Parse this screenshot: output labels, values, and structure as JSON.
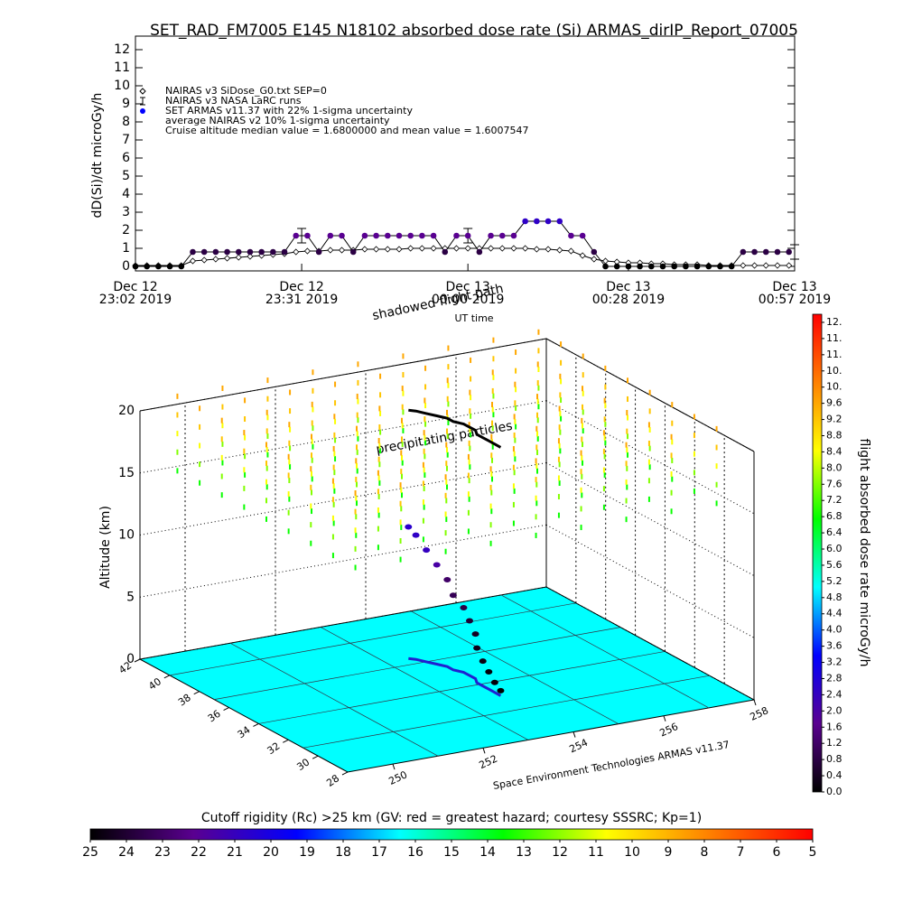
{
  "chart_data": [
    {
      "type": "line",
      "title": "SET_RAD_FM7005  E145 N18102 absorbed dose rate (Si) ARMAS_dirIP_Report_07005",
      "ylabel": "dD(Si)/dt microGy/h",
      "xlim": [
        0,
        115
      ],
      "ylim": [
        -0.25,
        12.75
      ],
      "xticks": [
        {
          "value": 0,
          "label": [
            "Dec 12",
            "23:02 2019"
          ]
        },
        {
          "value": 29,
          "label": [
            "Dec 12",
            "23:31 2019"
          ]
        },
        {
          "value": 58,
          "label": [
            "Dec 13",
            "00:00 2019"
          ]
        },
        {
          "value": 86,
          "label": [
            "Dec 13",
            "00:28 2019"
          ]
        },
        {
          "value": 115,
          "label": [
            "Dec 13",
            "00:57 2019"
          ]
        }
      ],
      "yticks": [
        0,
        1,
        2,
        3,
        4,
        5,
        6,
        7,
        8,
        9,
        10,
        11,
        12
      ],
      "x": [
        0,
        2,
        4,
        6,
        8,
        10,
        12,
        14,
        16,
        18,
        20,
        22,
        24,
        26,
        28,
        30,
        32,
        34,
        36,
        38,
        40,
        42,
        44,
        46,
        48,
        50,
        52,
        54,
        56,
        58,
        60,
        62,
        64,
        66,
        68,
        70,
        72,
        74,
        76,
        78,
        80,
        82,
        84,
        86,
        88,
        90,
        92,
        94,
        96,
        98,
        100,
        102,
        104,
        106,
        108,
        110,
        112,
        114
      ],
      "series": [
        {
          "name": "NAIRAS v3 SiDose_G0.txt SEP=0",
          "marker": "diamond",
          "color": "#000000",
          "values": [
            0.05,
            0.05,
            0.05,
            0.05,
            0.05,
            0.3,
            0.35,
            0.4,
            0.45,
            0.5,
            0.55,
            0.6,
            0.65,
            0.7,
            0.8,
            0.85,
            0.85,
            0.9,
            0.9,
            0.9,
            0.95,
            0.95,
            0.95,
            0.95,
            1.0,
            1.0,
            1.0,
            1.0,
            1.0,
            1.0,
            1.0,
            1.0,
            1.0,
            1.0,
            1.0,
            0.95,
            0.95,
            0.9,
            0.85,
            0.6,
            0.4,
            0.3,
            0.25,
            0.2,
            0.2,
            0.15,
            0.15,
            0.1,
            0.1,
            0.1,
            0.05,
            0.05,
            0.05,
            0.05,
            0.05,
            0.05,
            0.05,
            0.05
          ]
        },
        {
          "name": "NAIRAS v3 NASA LaRC runs",
          "marker": "errorbar",
          "color": "#000000",
          "x": [
            29,
            58,
            115
          ],
          "values": [
            1.7,
            1.7,
            0.8
          ],
          "errors": [
            0.4,
            0.4,
            0.4
          ]
        },
        {
          "name": "SET ARMAS v11.37 with 22% 1-sigma uncertainty",
          "marker": "dot",
          "color": "#0000ff",
          "values": [
            0,
            0,
            0,
            0,
            0,
            0.8,
            0.8,
            0.8,
            0.8,
            0.8,
            0.8,
            0.8,
            0.8,
            0.8,
            1.7,
            1.7,
            0.8,
            1.7,
            1.7,
            0.8,
            1.7,
            1.7,
            1.7,
            1.7,
            1.7,
            1.7,
            1.7,
            0.8,
            1.7,
            1.7,
            0.8,
            1.7,
            1.7,
            1.7,
            2.5,
            2.5,
            2.5,
            2.5,
            1.7,
            1.7,
            0.8,
            0,
            0,
            0,
            0,
            0,
            0,
            0,
            0,
            0,
            0,
            0,
            0,
            0.8,
            0.8,
            0.8,
            0.8,
            0.8
          ]
        }
      ],
      "legend_notes": [
        "average NAIRAS v2 10% 1-sigma uncertainty",
        "Cruise altitude median value = 1.6800000 and mean value = 1.6007547"
      ]
    },
    {
      "type": "scatter3d",
      "zlabel": "Altitude (km)",
      "zlim": [
        0,
        20
      ],
      "zticks": [
        0,
        5,
        10,
        15,
        20
      ],
      "latlim": [
        28,
        42
      ],
      "latticks": [
        42,
        40,
        38,
        36,
        34,
        32,
        30,
        28
      ],
      "lonlim": [
        249,
        258
      ],
      "lonticks": [
        250,
        252,
        254,
        256,
        258
      ],
      "floor_color": "#00ffff",
      "annotations": {
        "time_label": "UT time",
        "shadow": "shadowed flight path",
        "particles": "precipitating particles",
        "credit": "Space Environment Technologies ARMAS v11.37"
      },
      "track": {
        "lon": [
          253.5,
          253.6,
          253.7,
          253.8,
          253.9,
          253.9,
          254.0,
          254.0,
          254.0,
          253.9,
          253.9,
          253.9,
          253.9,
          253.9
        ],
        "lat": [
          37.6,
          37.4,
          37.0,
          36.6,
          36.2,
          35.8,
          35.4,
          35.0,
          34.6,
          34.2,
          33.8,
          33.4,
          33.0,
          32.6
        ],
        "alt": [
          10.6,
          10.0,
          9.0,
          8.0,
          7.0,
          6.0,
          5.2,
          4.4,
          3.6,
          2.8,
          2.0,
          1.4,
          0.8,
          0.4
        ],
        "dose": [
          2.6,
          2.5,
          2.4,
          2.0,
          1.2,
          1.0,
          0.8,
          0.6,
          0.4,
          0.3,
          0.2,
          0.1,
          0.1,
          0.0
        ]
      },
      "field": {
        "alt": [
          15.5,
          17,
          18.5,
          20,
          21.5
        ],
        "dose": [
          6.8,
          7.6,
          8.4,
          9.2,
          9.6
        ]
      },
      "colorbar": {
        "label": "flight absorbed dose rate microGy/h",
        "clim": [
          0,
          11.8
        ],
        "colors": [
          "#000000",
          "#5a0090",
          "#0000ff",
          "#00ffff",
          "#00ff00",
          "#ffff00",
          "#ff8000",
          "#ff0000"
        ],
        "ticks": [
          {
            "value": 0,
            "label": "0.0"
          },
          0.4,
          0.8,
          1.2,
          1.6,
          {
            "value": 2,
            "label": "2.0"
          },
          2.4,
          2.8,
          3.2,
          3.6,
          {
            "value": 4,
            "label": "4.0"
          },
          4.4,
          4.8,
          5.2,
          5.6,
          {
            "value": 6,
            "label": "6.0"
          },
          6.4,
          6.8,
          7.2,
          7.6,
          {
            "value": 8,
            "label": "8.0"
          },
          8.4,
          8.8,
          9.2,
          9.6,
          {
            "value": 10,
            "label": "10."
          },
          {
            "value": 10.4,
            "label": "10."
          },
          {
            "value": 10.8,
            "label": "11."
          },
          {
            "value": 11.2,
            "label": "11."
          },
          {
            "value": 11.6,
            "label": "12."
          }
        ]
      },
      "rc_colorbar": {
        "label": "Cutoff rigidity (Rc) >25 km (GV: red = greatest hazard; courtesy SSSRC; Kp=1)",
        "clim": [
          25,
          5
        ],
        "ticks": [
          25,
          24,
          23,
          22,
          21,
          20,
          19,
          18,
          17,
          16,
          15,
          14,
          13,
          12,
          11,
          10,
          9,
          8,
          7,
          6,
          5
        ]
      }
    }
  ]
}
